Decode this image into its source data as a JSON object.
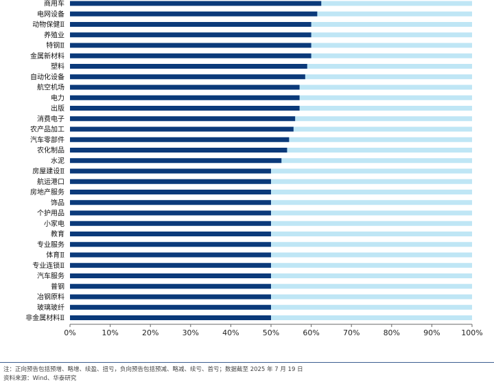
{
  "chart_data": {
    "type": "bar",
    "orientation": "horizontal",
    "stacked_percent": true,
    "title": "",
    "xlabel": "",
    "ylabel": "",
    "xlim": [
      0,
      100
    ],
    "x_ticks": [
      "0%",
      "10%",
      "20%",
      "30%",
      "40%",
      "50%",
      "60%",
      "70%",
      "80%",
      "90%",
      "100%"
    ],
    "grid": false,
    "legend": "none",
    "colors": {
      "positive": "#0b3a7a",
      "rest": "#bfe6f5"
    },
    "categories": [
      "商用车",
      "电网设备",
      "动物保健Ⅱ",
      "养殖业",
      "特钢Ⅱ",
      "金属新材料",
      "塑料",
      "自动化设备",
      "航空机场",
      "电力",
      "出版",
      "消费电子",
      "农产品加工",
      "汽车零部件",
      "农化制品",
      "水泥",
      "房屋建设Ⅱ",
      "航运港口",
      "房地产服务",
      "饰品",
      "个护用品",
      "小家电",
      "教育",
      "专业服务",
      "体育Ⅱ",
      "专业连锁Ⅱ",
      "汽车服务",
      "普钢",
      "冶钢原料",
      "玻璃玻纤",
      "非金属材料Ⅱ"
    ],
    "values": [
      62.5,
      61.5,
      60,
      60,
      60,
      60,
      59,
      58.5,
      57.1,
      57.1,
      57.1,
      56,
      55.6,
      54.5,
      54,
      52.6,
      50,
      50,
      50,
      50,
      50,
      50,
      50,
      50,
      50,
      50,
      50,
      50,
      50,
      50,
      50
    ]
  },
  "footer": {
    "note": "注：正向预告包括预增、略增、续盈、扭亏，负向预告包括预减、略减、续亏、首亏；数据截至 2025 年 7 月 19 日",
    "source": "资料来源：Wind、华泰研究"
  }
}
